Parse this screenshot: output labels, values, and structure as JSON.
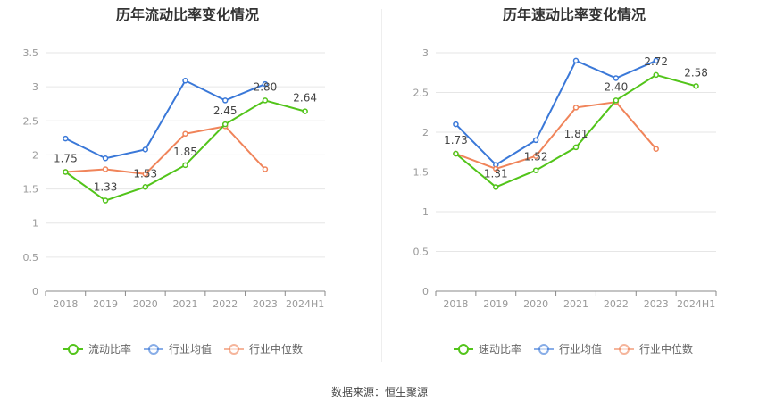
{
  "source_text": "数据来源：恒生聚源",
  "chart_data": [
    {
      "type": "line",
      "title": "历年流动比率变化情况",
      "categories": [
        "2018",
        "2019",
        "2020",
        "2021",
        "2022",
        "2023",
        "2024H1"
      ],
      "yticks": [
        "0",
        "0.5",
        "1",
        "1.5",
        "2",
        "2.5",
        "3",
        "3.5"
      ],
      "ylim": [
        0,
        3.5
      ],
      "grid": true,
      "legend_position": "bottom",
      "series": [
        {
          "name": "流动比率",
          "color": "#52c41a",
          "values": [
            1.75,
            1.33,
            1.53,
            1.85,
            2.45,
            2.8,
            2.64
          ],
          "labels": [
            "1.75",
            "1.33",
            "1.53",
            "1.85",
            "2.45",
            "2.80",
            "2.64"
          ]
        },
        {
          "name": "行业均值",
          "color": "#3a78d8",
          "values": [
            2.24,
            1.95,
            2.08,
            3.09,
            2.8,
            3.04,
            null
          ]
        },
        {
          "name": "行业中位数",
          "color": "#f0845a",
          "values": [
            1.75,
            1.79,
            1.72,
            2.31,
            2.42,
            1.79,
            null
          ]
        }
      ]
    },
    {
      "type": "line",
      "title": "历年速动比率变化情况",
      "categories": [
        "2018",
        "2019",
        "2020",
        "2021",
        "2022",
        "2023",
        "2024H1"
      ],
      "yticks": [
        "0",
        "0.5",
        "1",
        "1.5",
        "2",
        "2.5",
        "3"
      ],
      "ylim": [
        0,
        3
      ],
      "grid": true,
      "legend_position": "bottom",
      "series": [
        {
          "name": "速动比率",
          "color": "#52c41a",
          "values": [
            1.73,
            1.31,
            1.52,
            1.81,
            2.4,
            2.72,
            2.58
          ],
          "labels": [
            "1.73",
            "1.31",
            "1.52",
            "1.81",
            "2.40",
            "2.72",
            "2.58"
          ]
        },
        {
          "name": "行业均值",
          "color": "#3a78d8",
          "values": [
            2.1,
            1.59,
            1.9,
            2.9,
            2.68,
            2.9,
            null
          ]
        },
        {
          "name": "行业中位数",
          "color": "#f0845a",
          "values": [
            1.73,
            1.54,
            1.7,
            2.31,
            2.38,
            1.79,
            null
          ]
        }
      ]
    }
  ]
}
